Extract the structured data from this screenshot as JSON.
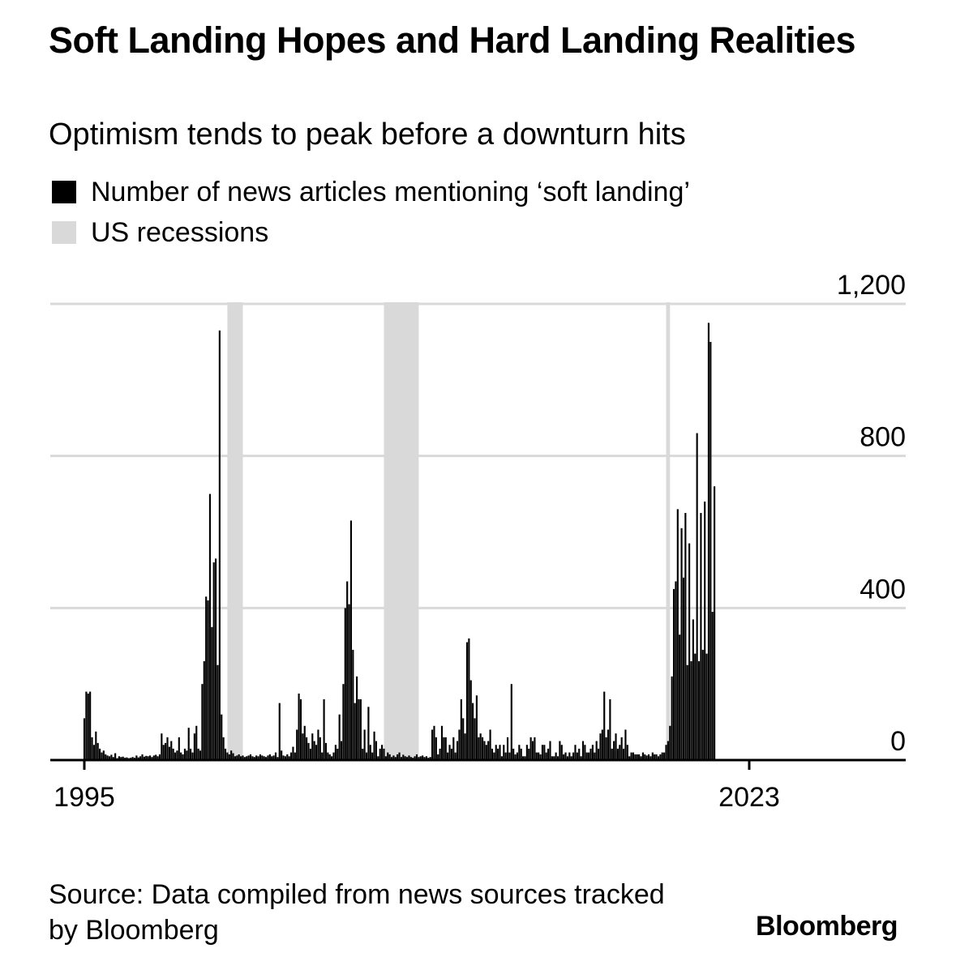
{
  "header": {
    "title": "Soft Landing Hopes and Hard Landing Realities",
    "subtitle": "Optimism tends to peak before a downturn hits"
  },
  "legend": [
    {
      "label": "Number of news articles mentioning ‘soft landing’",
      "color": "#000000"
    },
    {
      "label": "US recessions",
      "color": "#d9d9d9"
    }
  ],
  "footer": {
    "source": "Source: Data compiled from news sources tracked by Bloomberg",
    "brand": "Bloomberg"
  },
  "chart_data": {
    "type": "bar",
    "x_start": "1995-01",
    "x_end": "2023-09",
    "x_tick_labels": [
      "1995",
      "2023"
    ],
    "y_ticks": [
      0,
      400,
      800,
      1200
    ],
    "y_tick_labels": [
      "0",
      "400",
      "800",
      "1,200"
    ],
    "ylim": [
      0,
      1200
    ],
    "grid": true,
    "y_axis_side": "right",
    "bar_color": "#000000",
    "recession_color": "#d9d9d9",
    "recessions": [
      {
        "start": "2001-03",
        "end": "2001-11"
      },
      {
        "start": "2007-12",
        "end": "2009-06"
      },
      {
        "start": "2020-02",
        "end": "2020-04"
      }
    ],
    "series": [
      {
        "values_start": "1995-01",
        "frequency": "monthly",
        "values": [
          110,
          180,
          175,
          180,
          60,
          40,
          75,
          45,
          30,
          20,
          25,
          15,
          12,
          10,
          14,
          8,
          18,
          5,
          10,
          8,
          9,
          6,
          7,
          5,
          6,
          8,
          6,
          12,
          7,
          10,
          15,
          9,
          11,
          10,
          12,
          8,
          12,
          14,
          10,
          15,
          70,
          40,
          45,
          60,
          35,
          50,
          30,
          20,
          25,
          60,
          20,
          15,
          30,
          25,
          85,
          30,
          20,
          70,
          90,
          30,
          25,
          200,
          260,
          430,
          420,
          700,
          350,
          520,
          530,
          250,
          1130,
          120,
          60,
          30,
          20,
          15,
          25,
          18,
          10,
          12,
          15,
          10,
          12,
          8,
          10,
          12,
          15,
          10,
          8,
          12,
          10,
          15,
          12,
          10,
          8,
          12,
          15,
          10,
          12,
          20,
          8,
          150,
          25,
          12,
          10,
          15,
          10,
          20,
          35,
          20,
          80,
          175,
          160,
          70,
          90,
          60,
          45,
          30,
          70,
          50,
          40,
          80,
          60,
          20,
          160,
          45,
          20,
          15,
          10,
          20,
          40,
          30,
          120,
          50,
          200,
          400,
          470,
          410,
          630,
          290,
          150,
          220,
          160,
          160,
          30,
          80,
          20,
          140,
          40,
          20,
          75,
          50,
          10,
          30,
          40,
          30,
          10,
          20,
          15,
          8,
          12,
          8,
          15,
          20,
          8,
          14,
          10,
          8,
          12,
          8,
          6,
          10,
          15,
          8,
          10,
          12,
          8,
          10,
          6,
          8,
          80,
          90,
          60,
          15,
          30,
          90,
          60,
          60,
          20,
          40,
          30,
          60,
          20,
          50,
          80,
          160,
          110,
          70,
          310,
          320,
          210,
          150,
          110,
          170,
          60,
          70,
          60,
          50,
          40,
          50,
          80,
          30,
          20,
          40,
          30,
          40,
          10,
          40,
          20,
          60,
          20,
          200,
          30,
          15,
          20,
          40,
          30,
          10,
          10,
          40,
          30,
          60,
          50,
          60,
          20,
          20,
          15,
          40,
          40,
          20,
          30,
          50,
          10,
          10,
          20,
          10,
          50,
          40,
          15,
          20,
          10,
          20,
          10,
          20,
          40,
          20,
          30,
          10,
          50,
          40,
          20,
          20,
          30,
          40,
          20,
          50,
          30,
          70,
          80,
          180,
          60,
          80,
          160,
          30,
          50,
          70,
          30,
          40,
          60,
          30,
          80,
          40,
          10,
          20,
          20,
          15,
          15,
          15,
          10,
          20,
          15,
          12,
          15,
          10,
          20,
          15,
          15,
          10,
          15,
          20,
          20,
          40,
          50,
          90,
          220,
          450,
          470,
          660,
          330,
          610,
          480,
          650,
          250,
          570,
          260,
          370,
          280,
          860,
          260,
          650,
          290,
          680,
          280,
          1150,
          1100,
          390,
          720
        ]
      }
    ]
  }
}
